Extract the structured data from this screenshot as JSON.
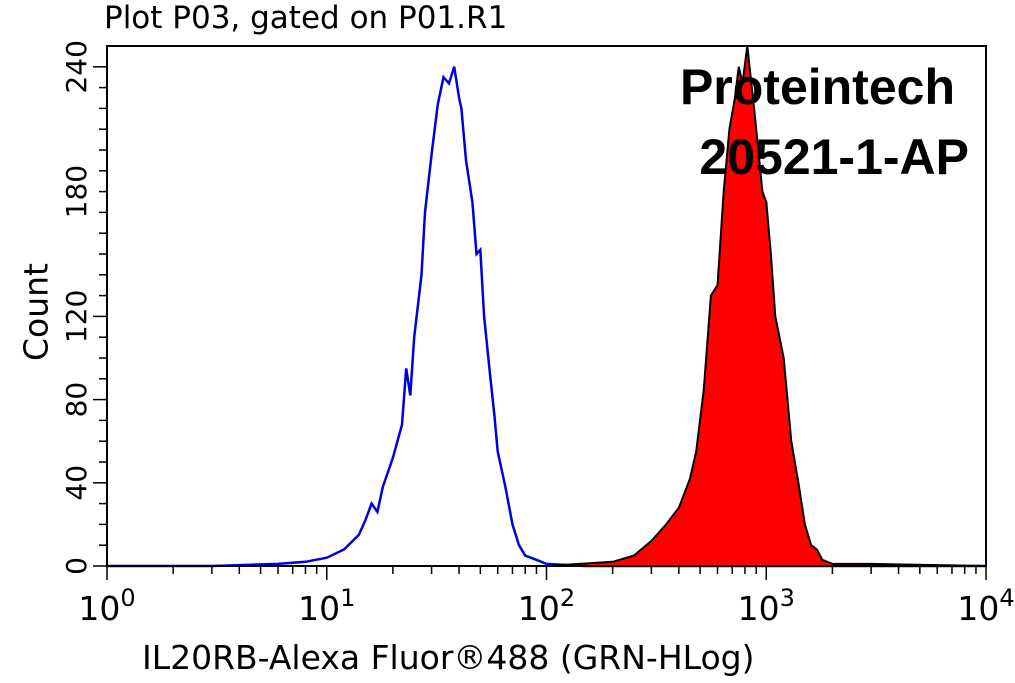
{
  "chart_data": {
    "type": "area",
    "title": "Plot P03, gated on P01.R1",
    "xlabel": "IL20RB-Alexa Fluor®488 (GRN-HLog)",
    "ylabel": "Count",
    "x_scale": "log",
    "xlim": [
      1,
      10000
    ],
    "ylim": [
      0,
      250
    ],
    "x_ticks": [
      {
        "base": "10",
        "exp": "0"
      },
      {
        "base": "10",
        "exp": "1"
      },
      {
        "base": "10",
        "exp": "2"
      },
      {
        "base": "10",
        "exp": "3"
      },
      {
        "base": "10",
        "exp": "4"
      }
    ],
    "y_ticks": [
      "0",
      "40",
      "80",
      "120",
      "180",
      "240"
    ],
    "y_tick_values": [
      0,
      40,
      80,
      120,
      180,
      240
    ],
    "annotations": [
      "Proteintech",
      "20521-1-AP"
    ],
    "series": [
      {
        "style": "outline",
        "color": "#0000dd",
        "x": [
          1,
          3,
          6,
          8,
          10,
          12,
          14,
          15,
          16,
          17,
          18,
          20,
          22,
          23,
          24,
          25,
          27,
          28,
          30,
          32,
          34,
          36,
          38,
          40,
          41,
          43,
          46,
          48,
          50,
          52,
          55,
          58,
          60,
          65,
          70,
          75,
          80,
          90,
          100,
          150,
          1000,
          10000
        ],
        "y": [
          0,
          0,
          1,
          2,
          4,
          8,
          15,
          22,
          30,
          26,
          38,
          52,
          68,
          95,
          82,
          110,
          140,
          170,
          198,
          222,
          235,
          232,
          240,
          225,
          220,
          195,
          175,
          150,
          152,
          120,
          95,
          72,
          55,
          38,
          20,
          10,
          5,
          3,
          1,
          0,
          0,
          0
        ]
      },
      {
        "style": "filled",
        "color": "#ff0000",
        "x": [
          1,
          100,
          200,
          250,
          300,
          350,
          400,
          450,
          480,
          520,
          560,
          600,
          640,
          680,
          720,
          750,
          780,
          820,
          850,
          880,
          920,
          960,
          1000,
          1050,
          1100,
          1200,
          1300,
          1400,
          1500,
          1600,
          1700,
          1800,
          2000,
          3000,
          10000
        ],
        "y": [
          0,
          0,
          2,
          5,
          12,
          20,
          28,
          42,
          55,
          85,
          130,
          135,
          180,
          210,
          225,
          240,
          232,
          250,
          235,
          220,
          200,
          180,
          175,
          150,
          120,
          100,
          60,
          40,
          20,
          10,
          8,
          3,
          1,
          1,
          0
        ]
      }
    ]
  }
}
